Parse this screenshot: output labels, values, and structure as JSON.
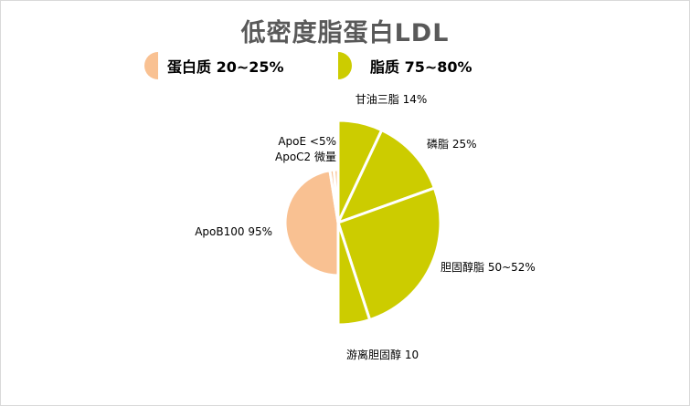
{
  "chart_data": {
    "type": "pie",
    "title": "低密度脂蛋白LDL",
    "legend": [
      {
        "label": "蛋白质 20~25%",
        "color": "#F9C192",
        "half": "left"
      },
      {
        "label": "脂质 75~80%",
        "color": "#CCCC00",
        "half": "right"
      }
    ],
    "left_half": {
      "name": "蛋白质",
      "color": "#F9C192",
      "slices": [
        {
          "label": "ApoB100 95%",
          "value": 95
        },
        {
          "label": "ApoE <5%",
          "value": 2.5
        },
        {
          "label": "ApoC2 微量",
          "value": 2.5
        }
      ]
    },
    "right_half": {
      "name": "脂质",
      "color": "#CCCC00",
      "slices": [
        {
          "label": "甘油三脂 14%",
          "value": 14
        },
        {
          "label": "磷脂 25%",
          "value": 25
        },
        {
          "label": "胆固醇脂 50~52%",
          "value": 51
        },
        {
          "label": "游离胆固醇 10",
          "value": 10
        }
      ]
    }
  }
}
